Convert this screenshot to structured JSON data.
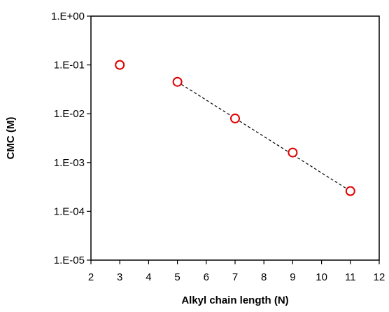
{
  "chart_data": {
    "type": "scatter",
    "xlabel": "Alkyl chain length (N)",
    "ylabel": "CMC (M)",
    "xlim": [
      2,
      12
    ],
    "x_ticks": [
      2,
      3,
      4,
      5,
      6,
      7,
      8,
      9,
      10,
      11,
      12
    ],
    "ylim": [
      1e-05,
      1
    ],
    "y_scale": "log",
    "y_ticks": [
      1,
      0.1,
      0.01,
      0.001,
      0.0001,
      1e-05
    ],
    "y_tick_labels": [
      "1.E+00",
      "1.E-01",
      "1.E-02",
      "1.E-03",
      "1.E-04",
      "1.E-05"
    ],
    "grid": false,
    "legend": "none",
    "marker": "open circle",
    "marker_color": "#e00000",
    "points": [
      {
        "x": 3,
        "y": 0.1
      },
      {
        "x": 5,
        "y": 0.045
      },
      {
        "x": 7,
        "y": 0.008
      },
      {
        "x": 9,
        "y": 0.0016
      },
      {
        "x": 11,
        "y": 0.00026
      }
    ],
    "trendline": {
      "style": "dashed",
      "color": "#000000",
      "x": [
        5,
        11
      ],
      "y": [
        0.045,
        0.00026
      ]
    }
  }
}
